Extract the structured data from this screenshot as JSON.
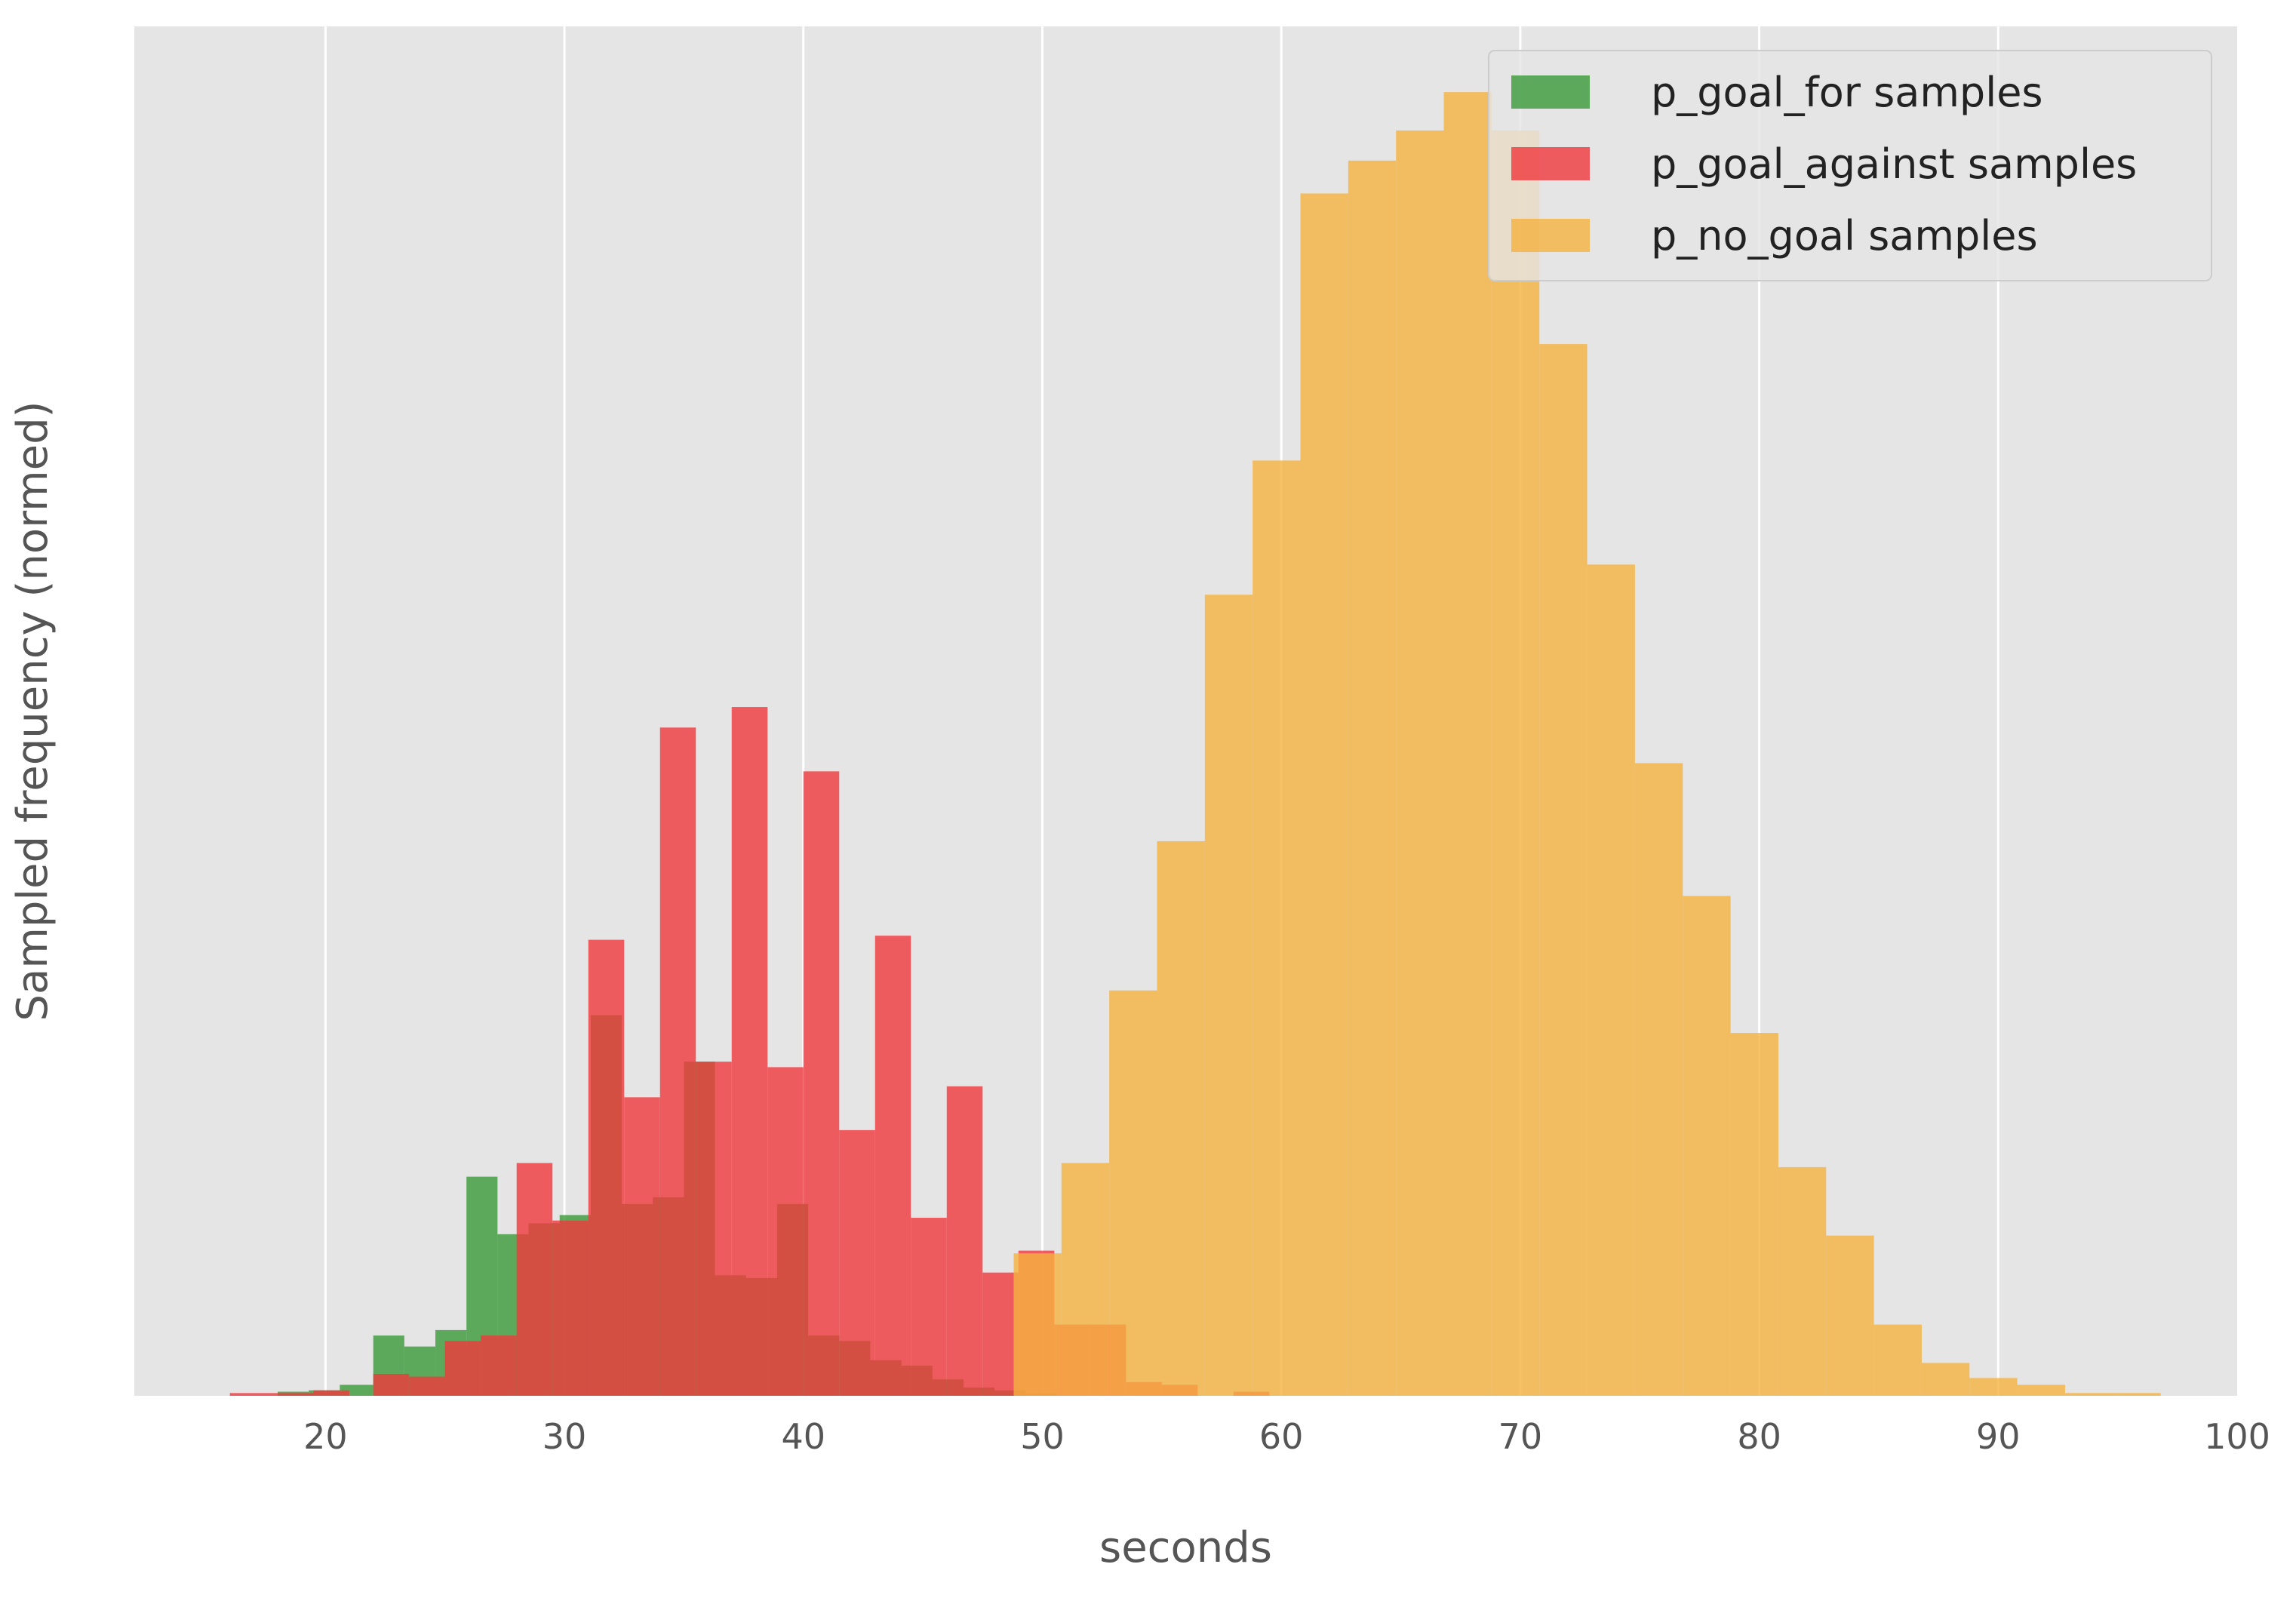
{
  "chart_data": {
    "type": "histogram",
    "title": "",
    "xlabel": "seconds",
    "ylabel": "Sampled frequency (normed)",
    "xlim": [
      12,
      100
    ],
    "ylim": [
      0,
      1
    ],
    "x_ticks": [
      20,
      30,
      40,
      50,
      60,
      70,
      80,
      90,
      100
    ],
    "y_ticks_shown": false,
    "grid": "vertical lines only",
    "background": "#e5e5e5",
    "legend_position": "top-right",
    "series": [
      {
        "name": "p_goal_for samples",
        "color": "#3a9a3a",
        "alpha": 0.8,
        "bins": [
          [
            18.0,
            19.3,
            0.003
          ],
          [
            19.3,
            20.6,
            0.004
          ],
          [
            20.6,
            22.0,
            0.008
          ],
          [
            22.0,
            23.3,
            0.044
          ],
          [
            23.3,
            24.6,
            0.036
          ],
          [
            24.6,
            25.9,
            0.048
          ],
          [
            25.9,
            27.2,
            0.16
          ],
          [
            27.2,
            28.5,
            0.118
          ],
          [
            28.5,
            29.8,
            0.126
          ],
          [
            29.8,
            31.1,
            0.132
          ],
          [
            31.1,
            32.4,
            0.278
          ],
          [
            32.4,
            33.7,
            0.14
          ],
          [
            33.7,
            35.0,
            0.145
          ],
          [
            35.0,
            36.3,
            0.244
          ],
          [
            36.3,
            37.6,
            0.088
          ],
          [
            37.6,
            38.9,
            0.086
          ],
          [
            38.9,
            40.2,
            0.14
          ],
          [
            40.2,
            41.5,
            0.044
          ],
          [
            41.5,
            42.8,
            0.04
          ],
          [
            42.8,
            44.1,
            0.026
          ],
          [
            44.1,
            45.4,
            0.022
          ],
          [
            45.4,
            46.7,
            0.012
          ],
          [
            46.7,
            48.0,
            0.006
          ],
          [
            48.0,
            49.3,
            0.004
          ],
          [
            49.3,
            50.6,
            0.002
          ]
        ]
      },
      {
        "name": "p_goal_against samples",
        "color": "#f0383c",
        "alpha": 0.8,
        "bins": [
          [
            16.0,
            18.0,
            0.002
          ],
          [
            18.0,
            19.5,
            0.002
          ],
          [
            19.5,
            21.0,
            0.004
          ],
          [
            22.0,
            23.5,
            0.016
          ],
          [
            23.5,
            25.0,
            0.014
          ],
          [
            25.0,
            26.5,
            0.04
          ],
          [
            26.5,
            28.0,
            0.044
          ],
          [
            28.0,
            29.5,
            0.17
          ],
          [
            29.5,
            31.0,
            0.128
          ],
          [
            31.0,
            32.5,
            0.333
          ],
          [
            32.5,
            34.0,
            0.218
          ],
          [
            34.0,
            35.5,
            0.488
          ],
          [
            35.5,
            37.0,
            0.244
          ],
          [
            37.0,
            38.5,
            0.503
          ],
          [
            38.5,
            40.0,
            0.24
          ],
          [
            40.0,
            41.5,
            0.456
          ],
          [
            41.5,
            43.0,
            0.194
          ],
          [
            43.0,
            44.5,
            0.336
          ],
          [
            44.5,
            46.0,
            0.13
          ],
          [
            46.0,
            47.5,
            0.226
          ],
          [
            47.5,
            49.0,
            0.09
          ],
          [
            49.0,
            50.5,
            0.106
          ],
          [
            50.5,
            52.0,
            0.052
          ],
          [
            52.0,
            53.5,
            0.052
          ],
          [
            53.5,
            55.0,
            0.01
          ],
          [
            55.0,
            56.5,
            0.008
          ],
          [
            58.0,
            59.5,
            0.003
          ]
        ]
      },
      {
        "name": "p_no_goal samples",
        "color": "#f5b240",
        "alpha": 0.8,
        "bins": [
          [
            48.8,
            50.8,
            0.104
          ],
          [
            50.8,
            52.8,
            0.17
          ],
          [
            52.8,
            54.8,
            0.296
          ],
          [
            54.8,
            56.8,
            0.405
          ],
          [
            56.8,
            58.8,
            0.585
          ],
          [
            58.8,
            60.8,
            0.683
          ],
          [
            60.8,
            62.8,
            0.878
          ],
          [
            62.8,
            64.8,
            0.902
          ],
          [
            64.8,
            66.8,
            0.924
          ],
          [
            66.8,
            68.8,
            0.952
          ],
          [
            68.8,
            70.8,
            0.924
          ],
          [
            70.8,
            72.8,
            0.768
          ],
          [
            72.8,
            74.8,
            0.607
          ],
          [
            74.8,
            76.8,
            0.462
          ],
          [
            76.8,
            78.8,
            0.365
          ],
          [
            78.8,
            80.8,
            0.265
          ],
          [
            80.8,
            82.8,
            0.167
          ],
          [
            82.8,
            84.8,
            0.117
          ],
          [
            84.8,
            86.8,
            0.052
          ],
          [
            86.8,
            88.8,
            0.024
          ],
          [
            88.8,
            90.8,
            0.013
          ],
          [
            90.8,
            92.8,
            0.008
          ],
          [
            92.8,
            94.8,
            0.002
          ],
          [
            94.8,
            96.8,
            0.002
          ]
        ]
      }
    ]
  }
}
